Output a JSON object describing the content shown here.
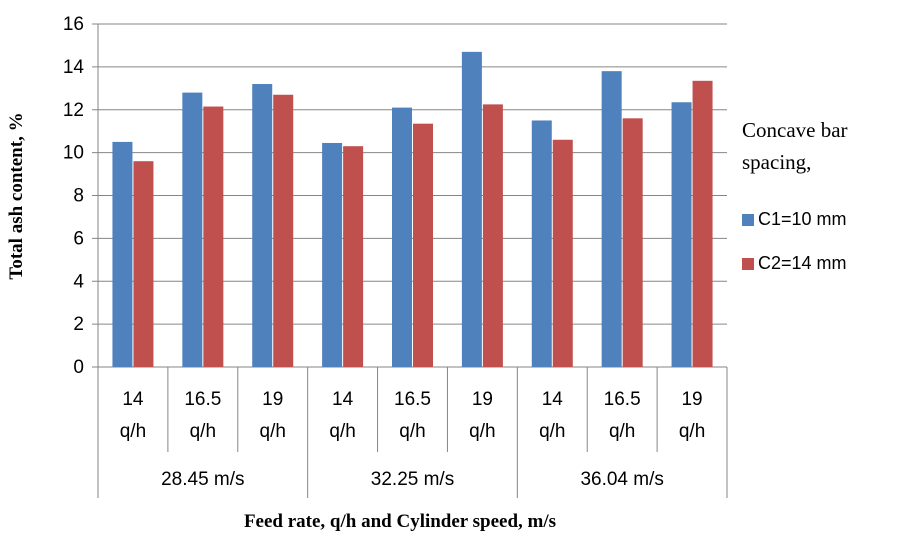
{
  "chart_data": {
    "type": "bar",
    "ylabel": "Total ash content, %",
    "xlabel": "Feed rate, q/h and Cylinder speed, m/s",
    "ylim": [
      0,
      16
    ],
    "yticks": [
      "0",
      "2",
      "4",
      "6",
      "8",
      "10",
      "12",
      "14",
      "16"
    ],
    "grid": true,
    "legend_position": "right",
    "legend_title_lines": [
      "Concave bar",
      "spacing,"
    ],
    "groups": [
      {
        "label": "28.45 m/s",
        "categories": [
          [
            "14",
            "q/h"
          ],
          [
            "16.5",
            "q/h"
          ],
          [
            "19",
            "q/h"
          ]
        ]
      },
      {
        "label": "32.25 m/s",
        "categories": [
          [
            "14",
            "q/h"
          ],
          [
            "16.5",
            "q/h"
          ],
          [
            "19",
            "q/h"
          ]
        ]
      },
      {
        "label": "36.04 m/s",
        "categories": [
          [
            "14",
            "q/h"
          ],
          [
            "16.5",
            "q/h"
          ],
          [
            "19",
            "q/h"
          ]
        ]
      }
    ],
    "series": [
      {
        "name": "C1=10 mm",
        "color": "#4f81bd",
        "values": [
          10.5,
          12.8,
          13.2,
          10.45,
          12.1,
          14.7,
          11.5,
          13.8,
          12.35
        ]
      },
      {
        "name": "C2=14 mm",
        "color": "#c0504d",
        "values": [
          9.6,
          12.15,
          12.7,
          10.3,
          11.35,
          12.25,
          10.6,
          11.6,
          13.35
        ]
      }
    ]
  }
}
